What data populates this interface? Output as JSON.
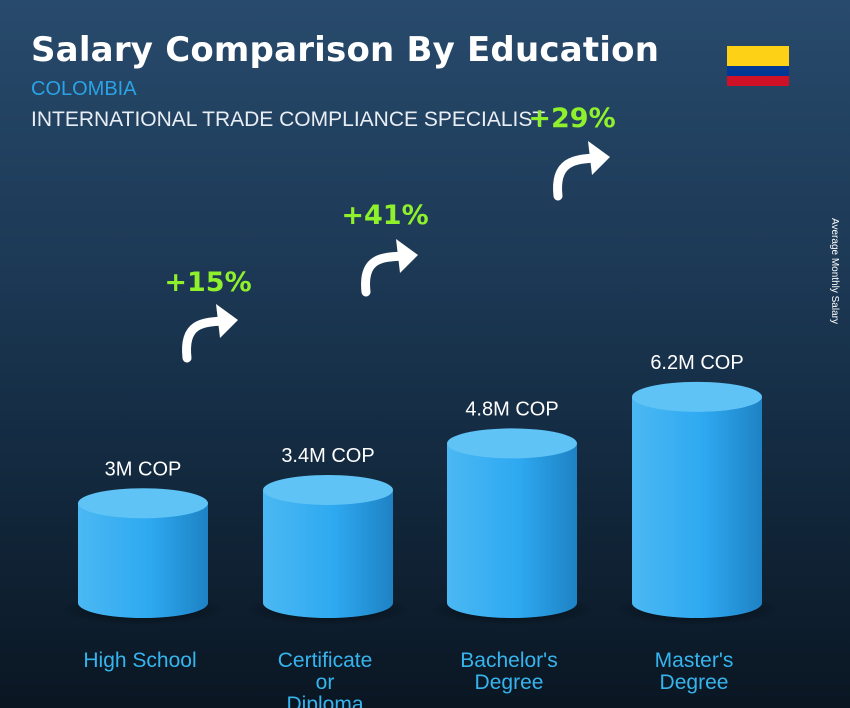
{
  "header": {
    "title": "Salary Comparison By Education",
    "country": "COLOMBIA",
    "job": "INTERNATIONAL TRADE COMPLIANCE SPECIALIST"
  },
  "side_label": "Average Monthly Salary",
  "flag_colors": [
    "#fcd116",
    "#003893",
    "#ce1126"
  ],
  "chart_data": {
    "type": "bar",
    "categories": [
      "High School",
      "Certificate or Diploma",
      "Bachelor's Degree",
      "Master's Degree"
    ],
    "values": [
      3.0,
      3.4,
      4.8,
      6.2
    ],
    "value_labels": [
      "3M COP",
      "3.4M COP",
      "4.8M COP",
      "6.2M COP"
    ],
    "increases": [
      "+15%",
      "+41%",
      "+29%"
    ],
    "ylabel": "Average Monthly Salary",
    "unit": "COP",
    "colors": {
      "bar": "#2ea9f1",
      "bar_top": "#5fc3f6",
      "increase": "#8ff02c",
      "category": "#36b4ee",
      "value": "#ffffff"
    }
  }
}
